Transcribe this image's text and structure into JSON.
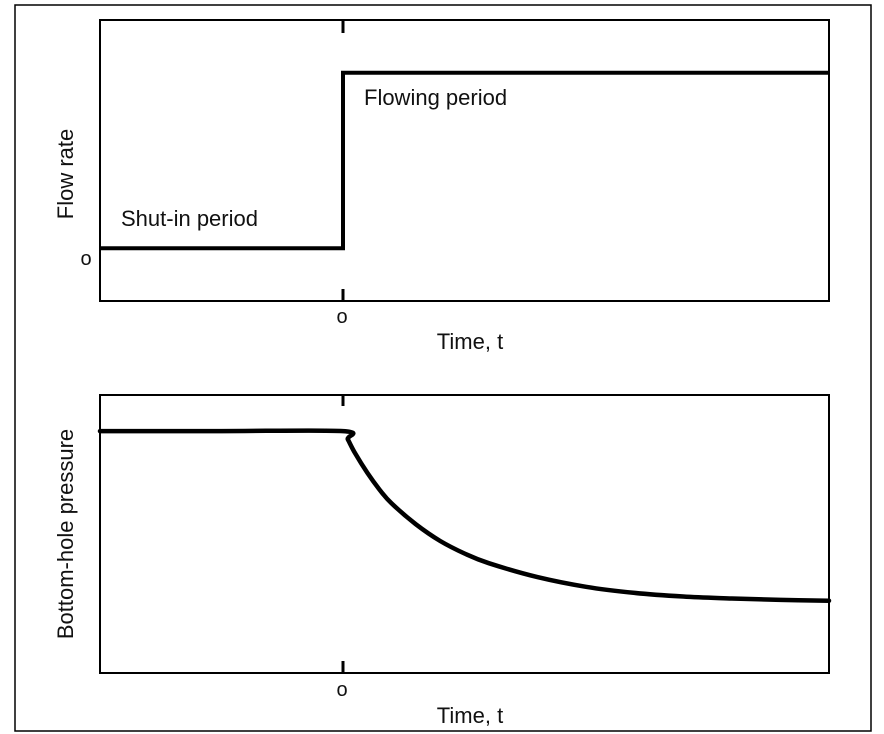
{
  "figure": {
    "line_color": "#000000",
    "frame_color": "#000000"
  },
  "chart_data": [
    {
      "type": "line",
      "title": "",
      "xlabel": "Time, t",
      "ylabel": "Flow rate",
      "x_tick_label": "o",
      "y_tick_label": "o",
      "x_ticks": [
        0
      ],
      "y_ticks": [
        0
      ],
      "xlim": [
        -1,
        2
      ],
      "ylim": [
        -0.3,
        1.3
      ],
      "annotations": [
        "Shut-in period",
        "Flowing period"
      ],
      "series": [
        {
          "x": [
            -1,
            0,
            0,
            2
          ],
          "y": [
            0,
            0,
            1,
            1
          ]
        }
      ]
    },
    {
      "type": "line",
      "title": "",
      "xlabel": "Time, t",
      "ylabel": "Bottom-hole pressure",
      "x_tick_label": "o",
      "x_ticks": [
        0
      ],
      "xlim": [
        -1,
        2
      ],
      "ylim": [
        0,
        1
      ],
      "series": [
        {
          "x": [
            -1,
            -0.5,
            0,
            0.02,
            0.05,
            0.1,
            0.15,
            0.2,
            0.3,
            0.4,
            0.5,
            0.6,
            0.8,
            1.0,
            1.2,
            1.4,
            1.6,
            1.8,
            2.0
          ],
          "y": [
            0.87,
            0.87,
            0.87,
            0.84,
            0.79,
            0.72,
            0.66,
            0.61,
            0.535,
            0.475,
            0.43,
            0.395,
            0.345,
            0.31,
            0.288,
            0.275,
            0.268,
            0.263,
            0.26
          ]
        }
      ]
    }
  ]
}
